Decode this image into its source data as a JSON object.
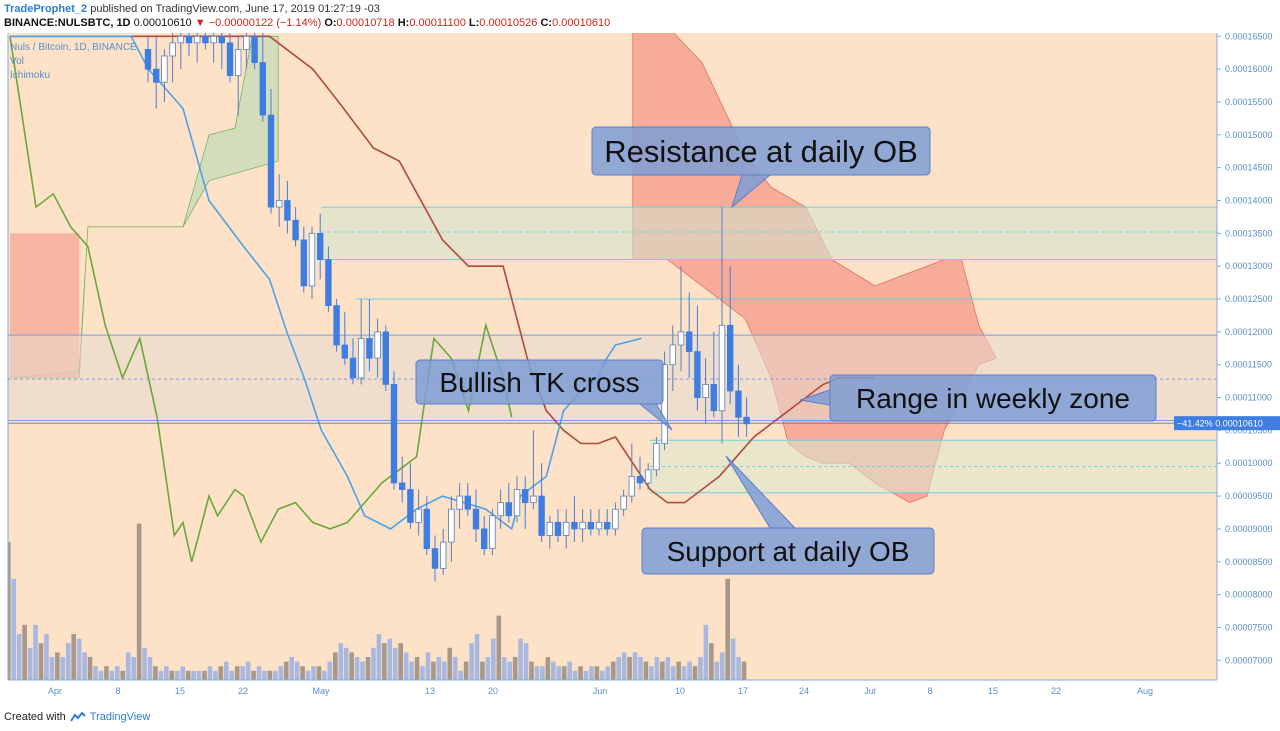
{
  "header": {
    "author": "TradeProphet_2",
    "published": "published on TradingView.com, June 17, 2019 01:27:19 -03",
    "symbol": "BINANCE:NULSBTC, 1D",
    "last": "0.00010610",
    "change": "−0.00000122 (−1.14%)",
    "o_label": "O:",
    "o": "0.00010718",
    "h_label": "H:",
    "h": "0.00011100",
    "l_label": "L:",
    "l": "0.00010526",
    "c_label": "C:",
    "c": "0.00010610"
  },
  "legend": {
    "series": "Nuls / Bitcoin, 1D, BINANCE",
    "vol": "Vol",
    "ichimoku": "Ichimoku"
  },
  "price_badge": {
    "text": "−41.42%  0.00010610",
    "value": 0.0001061
  },
  "footer": {
    "created_with": "Created with",
    "brand": "TradingView"
  },
  "colors": {
    "background": "#fde2c8",
    "up_candle": "#ffffff",
    "down_candle": "#3f7de0",
    "tenkan": "#4aa3e8",
    "kijun": "#b14a3c",
    "lagging": "#6aa83c",
    "kumo_bear": "#f5a290",
    "kumo_bull": "#c8dcb8",
    "zone": "#a8d8e0",
    "callout": "#7e9ed6"
  },
  "annotations": [
    {
      "text": "Resistance at daily OB"
    },
    {
      "text": "Bullish TK cross"
    },
    {
      "text": "Range in weekly zone"
    },
    {
      "text": "Support at daily OB"
    }
  ],
  "chart_data": {
    "type": "candlestick",
    "x_labels": [
      "Apr",
      "8",
      "15",
      "22",
      "May",
      "13",
      "20",
      "Jun",
      "10",
      "17",
      "24",
      "Jul",
      "8",
      "15",
      "22",
      "Aug"
    ],
    "y_ticks": [
      0.000165,
      0.00016,
      0.000155,
      0.00015,
      0.000145,
      0.00014,
      0.000135,
      0.00013,
      0.000125,
      0.00012,
      0.000115,
      0.00011,
      0.000105,
      0.0001,
      9.5e-05,
      9e-05,
      8.5e-05,
      8e-05,
      7.5e-05,
      7e-05
    ],
    "y_range": [
      6.7e-05,
      0.0001655
    ],
    "candles": [
      [
        0.000163,
        0.000165,
        0.000158,
        0.00016
      ],
      [
        0.00016,
        0.000165,
        0.000154,
        0.000158
      ],
      [
        0.000158,
        0.000163,
        0.000155,
        0.000162
      ],
      [
        0.000162,
        0.000166,
        0.000158,
        0.000164
      ],
      [
        0.000164,
        0.000166,
        0.00016,
        0.000165
      ],
      [
        0.000165,
        0.000166,
        0.000162,
        0.000164
      ],
      [
        0.000164,
        0.000166,
        0.000161,
        0.000165
      ],
      [
        0.000165,
        0.000166,
        0.000163,
        0.000164
      ],
      [
        0.000164,
        0.000166,
        0.000161,
        0.000165
      ],
      [
        0.000165,
        0.000166,
        0.00016,
        0.000164
      ],
      [
        0.000164,
        0.000166,
        0.000158,
        0.000159
      ],
      [
        0.000159,
        0.000165,
        0.000153,
        0.000163
      ],
      [
        0.000163,
        0.000166,
        0.00016,
        0.000165
      ],
      [
        0.000165,
        0.000166,
        0.00016,
        0.000161
      ],
      [
        0.000161,
        0.000166,
        0.000152,
        0.000153
      ],
      [
        0.000153,
        0.000157,
        0.000138,
        0.000139
      ],
      [
        0.000139,
        0.000144,
        0.000136,
        0.00014
      ],
      [
        0.00014,
        0.000143,
        0.000135,
        0.000137
      ],
      [
        0.000137,
        0.000139,
        0.000133,
        0.000134
      ],
      [
        0.000134,
        0.000136,
        0.000126,
        0.000127
      ],
      [
        0.000127,
        0.000136,
        0.000125,
        0.000135
      ],
      [
        0.000135,
        0.000138,
        0.000128,
        0.000131
      ],
      [
        0.000131,
        0.000133,
        0.000123,
        0.000124
      ],
      [
        0.000124,
        0.000125,
        0.000117,
        0.000118
      ],
      [
        0.000118,
        0.000123,
        0.000115,
        0.000116
      ],
      [
        0.000116,
        0.000119,
        0.000112,
        0.000113
      ],
      [
        0.000113,
        0.000125,
        0.000112,
        0.000119
      ],
      [
        0.000119,
        0.000125,
        0.000114,
        0.000116
      ],
      [
        0.000116,
        0.000122,
        0.000113,
        0.00012
      ],
      [
        0.00012,
        0.000121,
        0.000111,
        0.000112
      ],
      [
        0.000112,
        0.000114,
        9.6e-05,
        9.7e-05
      ],
      [
        9.7e-05,
        0.000101,
        9.4e-05,
        9.6e-05
      ],
      [
        9.6e-05,
        0.0001,
        9e-05,
        9.1e-05
      ],
      [
        9.1e-05,
        9.6e-05,
        8.9e-05,
        9.3e-05
      ],
      [
        9.3e-05,
        9.5e-05,
        8.6e-05,
        8.7e-05
      ],
      [
        8.7e-05,
        8.9e-05,
        8.2e-05,
        8.4e-05
      ],
      [
        8.4e-05,
        9e-05,
        8.3e-05,
        8.8e-05
      ],
      [
        8.8e-05,
        9.5e-05,
        8.5e-05,
        9.3e-05
      ],
      [
        9.3e-05,
        9.7e-05,
        9e-05,
        9.5e-05
      ],
      [
        9.5e-05,
        9.7e-05,
        9.2e-05,
        9.3e-05
      ],
      [
        9.3e-05,
        9.6e-05,
        8.8e-05,
        9e-05
      ],
      [
        9e-05,
        9.2e-05,
        8.6e-05,
        8.7e-05
      ],
      [
        8.7e-05,
        9.3e-05,
        8.6e-05,
        9.2e-05
      ],
      [
        9.2e-05,
        9.6e-05,
        9e-05,
        9.4e-05
      ],
      [
        9.4e-05,
        9.7e-05,
        9.1e-05,
        9.2e-05
      ],
      [
        9.2e-05,
        9.8e-05,
        9.1e-05,
        9.6e-05
      ],
      [
        9.6e-05,
        9.8e-05,
        9e-05,
        9.4e-05
      ],
      [
        9.4e-05,
        0.000105,
        9.3e-05,
        9.5e-05
      ],
      [
        9.5e-05,
        0.0001,
        8.8e-05,
        8.9e-05
      ],
      [
        8.9e-05,
        9.2e-05,
        8.7e-05,
        9.1e-05
      ],
      [
        9.1e-05,
        9.3e-05,
        8.8e-05,
        8.9e-05
      ],
      [
        8.9e-05,
        9.3e-05,
        8.7e-05,
        9.1e-05
      ],
      [
        9.1e-05,
        9.5e-05,
        8.8e-05,
        9e-05
      ],
      [
        9e-05,
        9.3e-05,
        8.8e-05,
        9.1e-05
      ],
      [
        9.1e-05,
        9.3e-05,
        8.9e-05,
        9e-05
      ],
      [
        9e-05,
        9.3e-05,
        8.9e-05,
        9.1e-05
      ],
      [
        9.1e-05,
        9.3e-05,
        8.9e-05,
        9e-05
      ],
      [
        9e-05,
        9.4e-05,
        8.9e-05,
        9.3e-05
      ],
      [
        9.3e-05,
        9.6e-05,
        9.2e-05,
        9.5e-05
      ],
      [
        9.5e-05,
        0.000103,
        9.4e-05,
        9.8e-05
      ],
      [
        9.8e-05,
        0.000101,
        9.6e-05,
        9.7e-05
      ],
      [
        9.7e-05,
        0.0001,
        9.6e-05,
        9.9e-05
      ],
      [
        9.9e-05,
        0.000104,
        9.8e-05,
        0.000103
      ],
      [
        0.000103,
        0.000117,
        0.000102,
        0.000115
      ],
      [
        0.000115,
        0.000121,
        0.000111,
        0.000118
      ],
      [
        0.000118,
        0.00013,
        0.000114,
        0.00012
      ],
      [
        0.00012,
        0.000126,
        0.000113,
        0.000117
      ],
      [
        0.000117,
        0.000124,
        0.000108,
        0.00011
      ],
      [
        0.00011,
        0.000116,
        0.000106,
        0.000112
      ],
      [
        0.000112,
        0.00012,
        0.000107,
        0.000108
      ],
      [
        0.000108,
        0.000139,
        0.000103,
        0.000121
      ],
      [
        0.000121,
        0.00013,
        0.000109,
        0.000111
      ],
      [
        0.000111,
        0.000115,
        0.000104,
        0.000107
      ],
      [
        0.000107,
        0.00011,
        0.000104,
        0.000106
      ]
    ],
    "volume": [
      0.3,
      0.22,
      0.1,
      0.12,
      0.07,
      0.12,
      0.08,
      0.1,
      0.05,
      0.06,
      0.05,
      0.08,
      0.1,
      0.09,
      0.06,
      0.05,
      0.03,
      0.02,
      0.03,
      0.02,
      0.03,
      0.02,
      0.06,
      0.05,
      0.34,
      0.07,
      0.05,
      0.03,
      0.02,
      0.03,
      0.02,
      0.02,
      0.03,
      0.02,
      0.02,
      0.02,
      0.02,
      0.03,
      0.02,
      0.03,
      0.04,
      0.02,
      0.03,
      0.03,
      0.04,
      0.02,
      0.03,
      0.02,
      0.02,
      0.02,
      0.03,
      0.04,
      0.05,
      0.04,
      0.03,
      0.02,
      0.03,
      0.03,
      0.02,
      0.04,
      0.06,
      0.08,
      0.07,
      0.06,
      0.05,
      0.04,
      0.05,
      0.07,
      0.1,
      0.08,
      0.09,
      0.07,
      0.08,
      0.06,
      0.04,
      0.05,
      0.03,
      0.06,
      0.04,
      0.05,
      0.04,
      0.07,
      0.05,
      0.02,
      0.04,
      0.08,
      0.1,
      0.04,
      0.05,
      0.09,
      0.14,
      0.05,
      0.04,
      0.05,
      0.09,
      0.08,
      0.04,
      0.03,
      0.03,
      0.05,
      0.04,
      0.03,
      0.03,
      0.04,
      0.02,
      0.03,
      0.02,
      0.03,
      0.03,
      0.02,
      0.03,
      0.04,
      0.05,
      0.06,
      0.05,
      0.06,
      0.05,
      0.04,
      0.03,
      0.05,
      0.04,
      0.05,
      0.03,
      0.04,
      0.03,
      0.04,
      0.03,
      0.05,
      0.12,
      0.08,
      0.04,
      0.06,
      0.22,
      0.09,
      0.05,
      0.04
    ],
    "tenkan": [
      [
        0,
        0.000165
      ],
      [
        14,
        0.000165
      ],
      [
        16,
        0.00016
      ],
      [
        20,
        0.000154
      ],
      [
        23,
        0.00014
      ],
      [
        27,
        0.000133
      ],
      [
        30,
        0.000128
      ],
      [
        32,
        0.00012
      ],
      [
        34,
        0.000113
      ],
      [
        36,
        0.000105
      ],
      [
        39,
        9.8e-05
      ],
      [
        41,
        9.2e-05
      ],
      [
        44,
        9e-05
      ],
      [
        47,
        9.3e-05
      ],
      [
        50,
        9.5e-05
      ],
      [
        55,
        9.3e-05
      ],
      [
        58,
        9e-05
      ],
      [
        59,
        9.5e-05
      ],
      [
        62,
        9.8e-05
      ],
      [
        63,
        0.000103
      ],
      [
        64,
        0.000108
      ],
      [
        66,
        0.000111
      ],
      [
        68,
        0.000113
      ],
      [
        69,
        0.000116
      ],
      [
        70,
        0.000118
      ],
      [
        73,
        0.000119
      ]
    ],
    "kijun": [
      [
        0,
        0.000165
      ],
      [
        30,
        0.000165
      ],
      [
        35,
        0.00016
      ],
      [
        38,
        0.000155
      ],
      [
        42,
        0.000148
      ],
      [
        45,
        0.000146
      ],
      [
        50,
        0.000134
      ],
      [
        53,
        0.00013
      ],
      [
        57,
        0.00013
      ],
      [
        60,
        0.000115
      ],
      [
        62,
        0.000108
      ],
      [
        64,
        0.000105
      ],
      [
        66,
        0.000103
      ],
      [
        68,
        0.000103
      ],
      [
        70,
        0.000104
      ],
      [
        72,
        0.0001
      ],
      [
        74,
        9.6e-05
      ],
      [
        76,
        9.4e-05
      ],
      [
        78,
        9.4e-05
      ],
      [
        80,
        9.6e-05
      ],
      [
        82,
        9.8e-05
      ],
      [
        84,
        0.000101
      ],
      [
        86,
        0.000104
      ],
      [
        88,
        0.000106
      ],
      [
        90,
        0.000108
      ],
      [
        92,
        0.00011
      ],
      [
        94,
        0.000112
      ],
      [
        96,
        0.000113
      ],
      [
        98,
        0.000113
      ],
      [
        100,
        0.000113
      ]
    ],
    "kumo_bear_region": "upper cloud from late May to July",
    "lagging_note": "chikou span plotted 26 periods back",
    "zones": [
      {
        "label": "daily OB resistance",
        "top": 0.000139,
        "mid": 0.0001352,
        "bottom": 0.000131
      },
      {
        "label": "weekly zone",
        "top": 0.0001195,
        "mid": 0.0001128,
        "bottom": 0.0001065
      },
      {
        "label": "daily OB support",
        "top": 0.0001035,
        "mid": 9.95e-05,
        "bottom": 9.55e-05
      }
    ]
  }
}
